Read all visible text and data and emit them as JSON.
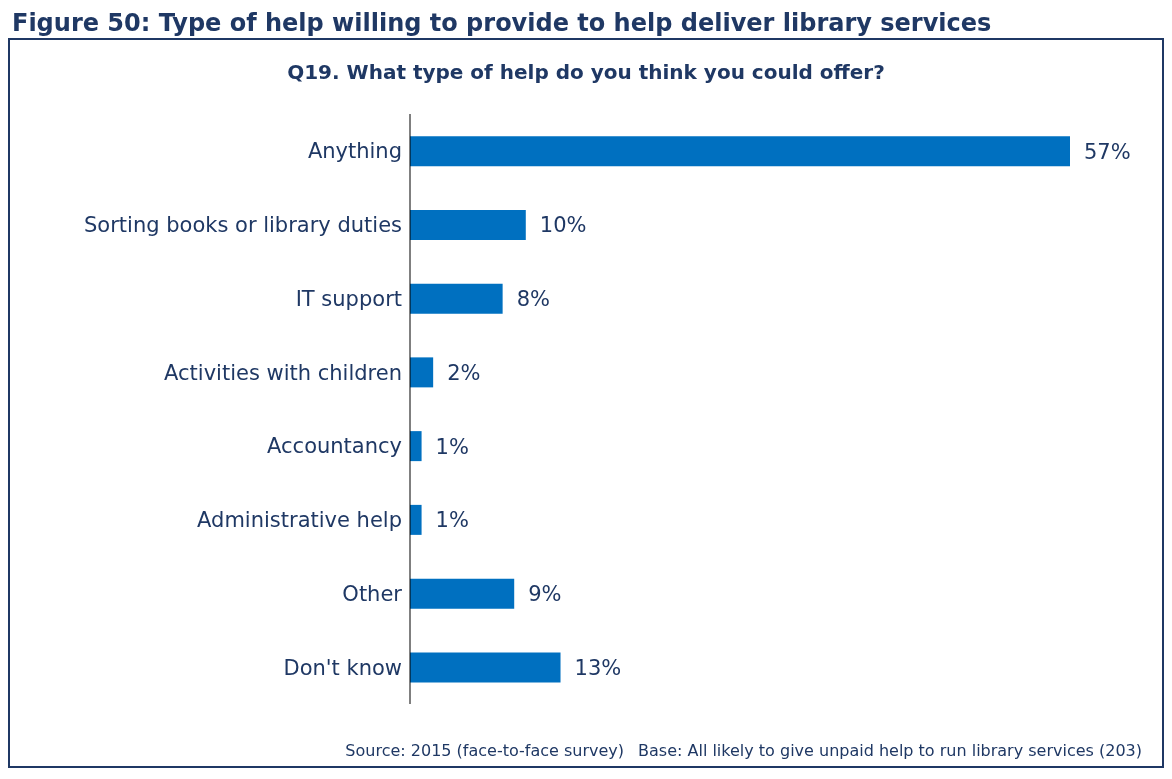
{
  "chart_data": {
    "type": "bar",
    "orientation": "horizontal",
    "title": "Figure 50: Type of help willing to provide to help deliver library services",
    "subtitle": "Q19. What type of help do you think you could offer?",
    "categories": [
      "Anything",
      "Sorting books or library duties",
      "IT support",
      "Activities with children",
      "Accountancy",
      "Administrative help",
      "Other",
      "Don't know"
    ],
    "values": [
      57,
      10,
      8,
      2,
      1,
      1,
      9,
      13
    ],
    "value_labels": [
      "57%",
      "10%",
      "8%",
      "2%",
      "1%",
      "1%",
      "9%",
      "13%"
    ],
    "color": "#0070c0",
    "annotations": [
      "Source: 2015 (face-to-face survey)",
      "Base: All  likely to give unpaid help to run library services (203)"
    ]
  }
}
